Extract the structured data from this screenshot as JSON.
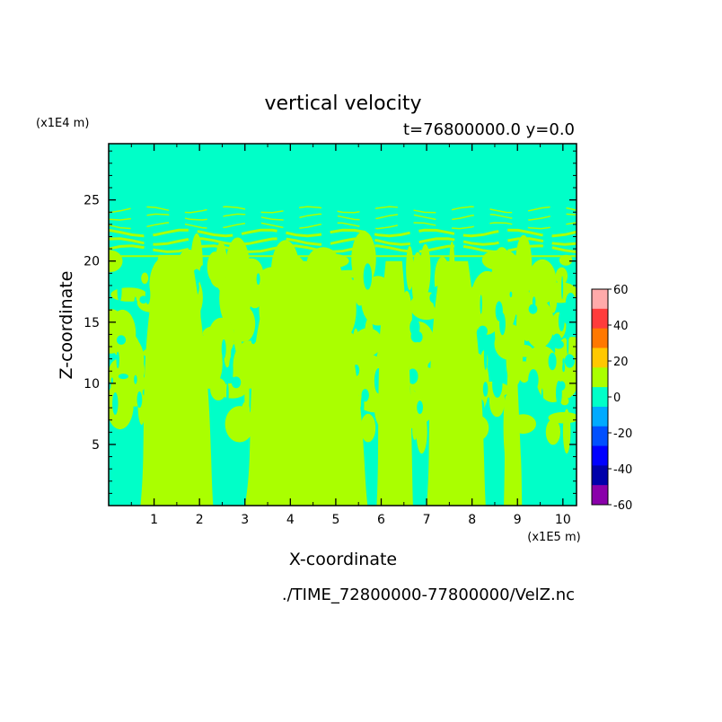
{
  "chart_data": {
    "type": "heatmap",
    "title": "vertical velocity",
    "subtitle": "t=76800000.0 y=0.0",
    "xlabel": "X-coordinate",
    "ylabel": "Z-coordinate",
    "x_unit": "(x1E5 m)",
    "y_unit": "(x1E4 m)",
    "xlim": [
      0,
      10.3
    ],
    "ylim": [
      0,
      29.6
    ],
    "x_ticks": [
      1,
      2,
      3,
      4,
      5,
      6,
      7,
      8,
      9,
      10
    ],
    "y_ticks": [
      5,
      10,
      15,
      20,
      25
    ],
    "background_level_color": "#00ffc8",
    "positive_level_color": "#aaff00",
    "updraft_columns": [
      {
        "x": [
          0.7,
          2.3
        ],
        "top": 20.5
      },
      {
        "x": [
          3.0,
          5.7
        ],
        "top": 20.0
      },
      {
        "x": [
          5.9,
          6.7
        ],
        "top": 20.0
      },
      {
        "x": [
          7.0,
          8.3
        ],
        "top": 20.0
      },
      {
        "x": [
          8.7,
          9.1
        ],
        "top": 12.0
      }
    ],
    "colorbar": {
      "ticks": [
        60,
        40,
        20,
        0,
        -20,
        -40,
        -60
      ],
      "colors": [
        "#ffaaaa",
        "#ff3c3c",
        "#ff7800",
        "#ffc800",
        "#aaff00",
        "#00ffc8",
        "#00aaff",
        "#0050ff",
        "#0000ff",
        "#0000aa",
        "#8a00aa"
      ]
    }
  },
  "footer": {
    "file_path": "./TIME_72800000-77800000/VelZ.nc"
  }
}
